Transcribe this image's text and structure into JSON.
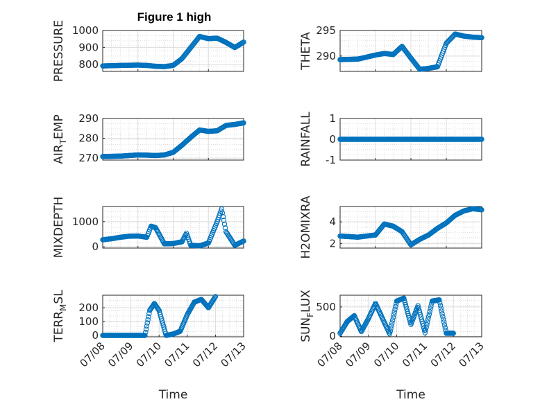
{
  "figure": {
    "title": "Figure 1 high",
    "marker_color": "#0072BD",
    "background": "#ffffff"
  },
  "chart_data": [
    {
      "type": "scatter",
      "marker": "circle-open",
      "ylabel": "PRESSURE",
      "title": "Figure 1 high",
      "xlim": [
        "07/08",
        "07/12"
      ],
      "ylim": [
        760,
        1000
      ],
      "yticks": [
        "800",
        "900",
        "1000"
      ],
      "grid": true,
      "x": [
        "07/08 00:00",
        "07/08 12:00",
        "07/09 00:00",
        "07/09 06:00",
        "07/09 12:00",
        "07/09 18:00",
        "07/10 00:00",
        "07/10 06:00",
        "07/10 12:00",
        "07/10 18:00",
        "07/11 00:00",
        "07/11 06:00",
        "07/11 12:00",
        "07/11 18:00",
        "07/12 00:00"
      ],
      "y": [
        792,
        795,
        797,
        795,
        790,
        788,
        795,
        835,
        900,
        965,
        952,
        955,
        930,
        900,
        932
      ]
    },
    {
      "type": "scatter",
      "marker": "circle-open",
      "ylabel": "THETA",
      "xlim": [
        "07/08",
        "07/12"
      ],
      "ylim": [
        287,
        295
      ],
      "yticks": [
        "290",
        "295"
      ],
      "grid": true,
      "x": [
        "07/08 00:00",
        "07/08 12:00",
        "07/09 00:00",
        "07/09 06:00",
        "07/09 12:00",
        "07/09 18:00",
        "07/10 00:00",
        "07/10 06:00",
        "07/10 12:00",
        "07/10 18:00",
        "07/11 00:00",
        "07/11 06:00",
        "07/11 12:00",
        "07/11 18:00",
        "07/12 00:00"
      ],
      "y": [
        289.3,
        289.4,
        290.2,
        290.5,
        290.3,
        291.9,
        289.6,
        287.4,
        287.6,
        287.9,
        292.5,
        294.3,
        293.9,
        293.7,
        293.6
      ]
    },
    {
      "type": "scatter",
      "marker": "circle-open",
      "ylabel": "AIR_TEMP",
      "ylabel_main": "AIR",
      "ylabel_sub": "T",
      "ylabel_rest": "EMP",
      "xlim": [
        "07/08",
        "07/12"
      ],
      "ylim": [
        269,
        290
      ],
      "yticks": [
        "270",
        "280",
        "290"
      ],
      "grid": true,
      "x": [
        "07/08 00:00",
        "07/08 12:00",
        "07/09 00:00",
        "07/09 06:00",
        "07/09 12:00",
        "07/09 18:00",
        "07/10 00:00",
        "07/10 06:00",
        "07/10 12:00",
        "07/10 18:00",
        "07/11 00:00",
        "07/11 06:00",
        "07/11 12:00",
        "07/11 18:00",
        "07/12 00:00"
      ],
      "y": [
        270.8,
        271,
        271.6,
        271.5,
        271.3,
        271.6,
        272.9,
        276.5,
        280.5,
        284.2,
        283.5,
        283.8,
        286.5,
        287,
        287.8
      ]
    },
    {
      "type": "scatter",
      "marker": "circle-open",
      "ylabel": "RAINFALL",
      "xlim": [
        "07/08",
        "07/12"
      ],
      "ylim": [
        -1,
        1
      ],
      "yticks": [
        "-1",
        "0",
        "1"
      ],
      "grid": true,
      "x": [
        "07/08 00:00",
        "07/08 12:00",
        "07/09 00:00",
        "07/09 12:00",
        "07/10 00:00",
        "07/10 12:00",
        "07/11 00:00",
        "07/11 12:00",
        "07/12 00:00"
      ],
      "y": [
        0,
        0,
        0,
        0,
        0,
        0,
        0,
        0,
        0
      ]
    },
    {
      "type": "scatter",
      "marker": "circle-open",
      "ylabel": "MIXDEPTH",
      "xlim": [
        "07/08",
        "07/12"
      ],
      "ylim": [
        -50,
        1600
      ],
      "yticks": [
        "0",
        "1000"
      ],
      "grid": true,
      "x": [
        "07/08 00:00",
        "07/08 06:00",
        "07/08 12:00",
        "07/08 18:00",
        "07/09 00:00",
        "07/09 06:00",
        "07/09 09:00",
        "07/09 12:00",
        "07/09 18:00",
        "07/10 00:00",
        "07/10 06:00",
        "07/10 09:00",
        "07/10 12:00",
        "07/10 18:00",
        "07/11 00:00",
        "07/11 06:00",
        "07/11 09:00",
        "07/11 12:00",
        "07/11 18:00",
        "07/12 00:00"
      ],
      "y": [
        280,
        320,
        380,
        420,
        430,
        380,
        820,
        760,
        120,
        130,
        200,
        540,
        60,
        40,
        150,
        1000,
        1500,
        600,
        60,
        230
      ]
    },
    {
      "type": "scatter",
      "marker": "circle-open",
      "ylabel": "H2OMIXRA",
      "xlim": [
        "07/08",
        "07/12"
      ],
      "ylim": [
        1.6,
        5.4
      ],
      "yticks": [
        "2",
        "4"
      ],
      "grid": true,
      "x": [
        "07/08 00:00",
        "07/08 12:00",
        "07/09 00:00",
        "07/09 06:00",
        "07/09 12:00",
        "07/09 18:00",
        "07/10 00:00",
        "07/10 06:00",
        "07/10 12:00",
        "07/10 18:00",
        "07/11 00:00",
        "07/11 06:00",
        "07/11 12:00",
        "07/11 18:00",
        "07/12 00:00"
      ],
      "y": [
        2.7,
        2.6,
        2.8,
        3.8,
        3.6,
        3.1,
        1.9,
        2.4,
        2.8,
        3.4,
        3.9,
        4.6,
        5.0,
        5.2,
        5.1
      ]
    },
    {
      "type": "scatter",
      "marker": "circle-open",
      "ylabel": "TERR_MSL",
      "ylabel_main": "TERR",
      "ylabel_sub": "M",
      "ylabel_rest": "SL",
      "xlabel": "Time",
      "xlim": [
        "07/08",
        "07/13"
      ],
      "xticks": [
        "07/08",
        "07/09",
        "07/10",
        "07/11",
        "07/12",
        "07/13"
      ],
      "ylim": [
        -10,
        290
      ],
      "yticks": [
        "0",
        "100",
        "200"
      ],
      "grid": true,
      "x": [
        "07/08 00:00",
        "07/08 12:00",
        "07/09 00:00",
        "07/09 12:00",
        "07/09 16:00",
        "07/09 20:00",
        "07/10 00:00",
        "07/10 06:00",
        "07/10 12:00",
        "07/10 18:00",
        "07/11 00:00",
        "07/11 06:00",
        "07/11 12:00",
        "07/11 18:00",
        "07/12 00:00"
      ],
      "y": [
        0,
        0,
        0,
        0,
        180,
        230,
        180,
        0,
        10,
        30,
        150,
        240,
        260,
        200,
        280
      ]
    },
    {
      "type": "scatter",
      "marker": "circle-open",
      "ylabel": "SUN_FLUX",
      "ylabel_main": "SUN",
      "ylabel_sub": "F",
      "ylabel_rest": "LUX",
      "xlabel": "Time",
      "xlim": [
        "07/08",
        "07/13"
      ],
      "xticks": [
        "07/08",
        "07/09",
        "07/10",
        "07/11",
        "07/12",
        "07/13"
      ],
      "ylim": [
        -10,
        700
      ],
      "yticks": [
        "0",
        "500"
      ],
      "grid": true,
      "x": [
        "07/08 00:00",
        "07/08 06:00",
        "07/08 12:00",
        "07/08 18:00",
        "07/09 00:00",
        "07/09 06:00",
        "07/09 12:00",
        "07/09 18:00",
        "07/10 00:00",
        "07/10 06:00",
        "07/10 12:00",
        "07/10 18:00",
        "07/11 00:00",
        "07/11 06:00",
        "07/11 12:00",
        "07/11 18:00",
        "07/12 00:00"
      ],
      "y": [
        50,
        250,
        350,
        80,
        300,
        560,
        300,
        40,
        600,
        650,
        200,
        520,
        60,
        600,
        620,
        50,
        50
      ]
    }
  ]
}
